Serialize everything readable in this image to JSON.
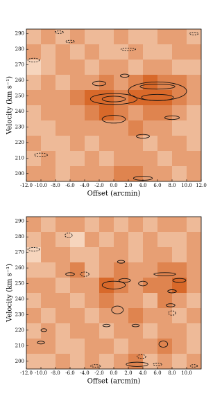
{
  "chart_data": [
    {
      "type": "heatmap",
      "x_label": "Offset (arcmin)",
      "y_label": "Velocity (km s⁻¹)",
      "xlim": [
        -12,
        12
      ],
      "ylim": [
        195,
        293
      ],
      "xticks": [
        {
          "value": -12,
          "label": "-12.0"
        },
        {
          "value": -10,
          "label": "-10.0"
        },
        {
          "value": -8,
          "label": "-8.0"
        },
        {
          "value": -6,
          "label": "-6.0"
        },
        {
          "value": -4,
          "label": "-4.0"
        },
        {
          "value": -2,
          "label": "-2.0"
        },
        {
          "value": 0,
          "label": "0.0"
        },
        {
          "value": 2,
          "label": "2.0"
        },
        {
          "value": 4,
          "label": "4.0"
        },
        {
          "value": 6,
          "label": "6.0"
        },
        {
          "value": 8,
          "label": "8.0"
        },
        {
          "value": 10,
          "label": "10.0"
        },
        {
          "value": 12,
          "label": "12.0"
        }
      ],
      "yticks": [
        200,
        210,
        220,
        230,
        240,
        250,
        260,
        270,
        280,
        290
      ],
      "colors": [
        "#fdf0e2",
        "#d8692a"
      ],
      "zlim": [
        0,
        5
      ],
      "z": [
        [
          2,
          3,
          2,
          3,
          2,
          2,
          3,
          2,
          2,
          3,
          3,
          2
        ],
        [
          3,
          2,
          3,
          2,
          3,
          2,
          2,
          3,
          2,
          2,
          3,
          3
        ],
        [
          1,
          2,
          3,
          3,
          2,
          3,
          3,
          2,
          3,
          3,
          2,
          2
        ],
        [
          2,
          3,
          2,
          3,
          3,
          4,
          3,
          4,
          5,
          4,
          4,
          3
        ],
        [
          3,
          3,
          3,
          4,
          5,
          5,
          4,
          5,
          5,
          5,
          4,
          3
        ],
        [
          2,
          3,
          3,
          3,
          4,
          5,
          4,
          3,
          4,
          4,
          3,
          2
        ],
        [
          2,
          2,
          3,
          3,
          3,
          3,
          3,
          4,
          3,
          3,
          2,
          2
        ],
        [
          3,
          2,
          2,
          3,
          2,
          3,
          3,
          3,
          2,
          3,
          3,
          2
        ],
        [
          2,
          3,
          2,
          2,
          3,
          2,
          3,
          3,
          3,
          2,
          3,
          3
        ],
        [
          3,
          3,
          2,
          3,
          3,
          3,
          4,
          4,
          3,
          3,
          2,
          3
        ]
      ],
      "contours": [
        {
          "x": 0,
          "y": 248,
          "rx": 3.2,
          "ry": 3.5,
          "style": "solid"
        },
        {
          "x": 0,
          "y": 248,
          "rx": 1.6,
          "ry": 1.8,
          "style": "solid"
        },
        {
          "x": 6,
          "y": 253,
          "rx": 4,
          "ry": 6,
          "style": "solid"
        },
        {
          "x": 6,
          "y": 249,
          "rx": 2.2,
          "ry": 2,
          "style": "solid"
        },
        {
          "x": 6,
          "y": 256,
          "rx": 2.4,
          "ry": 1.6,
          "style": "solid"
        },
        {
          "x": 0,
          "y": 235,
          "rx": 1.6,
          "ry": 2.5,
          "style": "solid"
        },
        {
          "x": 8,
          "y": 236,
          "rx": 1,
          "ry": 1.2,
          "style": "solid"
        },
        {
          "x": 4,
          "y": 224,
          "rx": 0.9,
          "ry": 1.2,
          "style": "solid"
        },
        {
          "x": 4,
          "y": 197,
          "rx": 1.3,
          "ry": 1.3,
          "style": "solid"
        },
        {
          "x": -2,
          "y": 258,
          "rx": 0.9,
          "ry": 1.5,
          "style": "solid"
        },
        {
          "x": 1.5,
          "y": 263,
          "rx": 0.6,
          "ry": 1,
          "style": "solid"
        },
        {
          "x": -6,
          "y": 285,
          "rx": 0.6,
          "ry": 0.8,
          "style": "dashed"
        },
        {
          "x": 2,
          "y": 280,
          "rx": 1,
          "ry": 0.8,
          "style": "dashed"
        },
        {
          "x": -11,
          "y": 273,
          "rx": 0.8,
          "ry": 1.2,
          "style": "dashed"
        },
        {
          "x": -10,
          "y": 212,
          "rx": 0.9,
          "ry": 1.2,
          "style": "dashed"
        },
        {
          "x": 11,
          "y": 290,
          "rx": 0.6,
          "ry": 0.8,
          "style": "dashed"
        },
        {
          "x": -7.5,
          "y": 291,
          "rx": 0.6,
          "ry": 0.8,
          "style": "dashed"
        }
      ]
    },
    {
      "type": "heatmap",
      "x_label": "Offset (arcmin)",
      "y_label": "Velocity (km s⁻¹)",
      "xlim": [
        -12,
        12
      ],
      "ylim": [
        195,
        293
      ],
      "xticks": [
        {
          "value": -12,
          "label": "-12.0"
        },
        {
          "value": -10,
          "label": "-10.0"
        },
        {
          "value": -8,
          "label": "-8.0"
        },
        {
          "value": -6,
          "label": "-6.0"
        },
        {
          "value": -4,
          "label": "-4.0"
        },
        {
          "value": -2,
          "label": "-2.0"
        },
        {
          "value": 0,
          "label": "0.0"
        },
        {
          "value": 2,
          "label": "2.0"
        },
        {
          "value": 4,
          "label": "4.0"
        },
        {
          "value": 6,
          "label": "6.0"
        },
        {
          "value": 8,
          "label": "8.0"
        },
        {
          "value": 10,
          "label": "10.0"
        }
      ],
      "yticks": [
        200,
        210,
        220,
        230,
        240,
        250,
        260,
        270,
        280,
        290
      ],
      "colors": [
        "#fdf0e2",
        "#d8692a"
      ],
      "zlim": [
        0,
        5
      ],
      "z": [
        [
          3,
          2,
          3,
          3,
          2,
          3,
          2,
          3,
          2,
          3,
          3,
          2
        ],
        [
          2,
          3,
          2,
          1,
          3,
          2,
          3,
          2,
          3,
          2,
          2,
          3
        ],
        [
          1,
          3,
          3,
          2,
          2,
          3,
          3,
          2,
          3,
          3,
          2,
          3
        ],
        [
          2,
          2,
          3,
          4,
          2,
          3,
          4,
          3,
          3,
          4,
          4,
          3
        ],
        [
          3,
          3,
          2,
          3,
          3,
          5,
          4,
          3,
          4,
          4,
          5,
          3
        ],
        [
          2,
          3,
          3,
          2,
          3,
          4,
          3,
          3,
          2,
          4,
          3,
          2
        ],
        [
          3,
          2,
          3,
          3,
          2,
          3,
          3,
          4,
          3,
          3,
          2,
          3
        ],
        [
          2,
          3,
          2,
          3,
          3,
          2,
          3,
          3,
          2,
          3,
          3,
          2
        ],
        [
          3,
          3,
          2,
          2,
          3,
          3,
          2,
          3,
          3,
          4,
          3,
          2
        ],
        [
          2,
          2,
          3,
          2,
          3,
          2,
          3,
          4,
          2,
          3,
          2,
          3
        ]
      ],
      "contours": [
        {
          "x": 0,
          "y": 249,
          "rx": 1.6,
          "ry": 2.5,
          "style": "solid"
        },
        {
          "x": 1.5,
          "y": 252,
          "rx": 0.8,
          "ry": 1.2,
          "style": "solid"
        },
        {
          "x": -6,
          "y": 256,
          "rx": 0.6,
          "ry": 1,
          "style": "solid"
        },
        {
          "x": 1,
          "y": 264,
          "rx": 0.5,
          "ry": 0.9,
          "style": "solid"
        },
        {
          "x": 7,
          "y": 256,
          "rx": 1.5,
          "ry": 1,
          "style": "solid"
        },
        {
          "x": 9,
          "y": 252,
          "rx": 0.9,
          "ry": 1.3,
          "style": "solid"
        },
        {
          "x": 8,
          "y": 245,
          "rx": 0.6,
          "ry": 1,
          "style": "solid"
        },
        {
          "x": 7.8,
          "y": 236,
          "rx": 0.6,
          "ry": 1,
          "style": "solid"
        },
        {
          "x": 4,
          "y": 250,
          "rx": 0.6,
          "ry": 1.5,
          "style": "solid"
        },
        {
          "x": 0.5,
          "y": 233,
          "rx": 0.8,
          "ry": 2.5,
          "style": "solid"
        },
        {
          "x": -1,
          "y": 223,
          "rx": 0.5,
          "ry": 0.8,
          "style": "solid"
        },
        {
          "x": 3,
          "y": 223,
          "rx": 0.5,
          "ry": 0.8,
          "style": "solid"
        },
        {
          "x": 6.8,
          "y": 211,
          "rx": 0.6,
          "ry": 2,
          "style": "solid"
        },
        {
          "x": 3.2,
          "y": 198,
          "rx": 1.5,
          "ry": 1.4,
          "style": "solid"
        },
        {
          "x": -10,
          "y": 212,
          "rx": 0.5,
          "ry": 0.9,
          "style": "solid"
        },
        {
          "x": -9.6,
          "y": 220,
          "rx": 0.4,
          "ry": 0.9,
          "style": "solid"
        },
        {
          "x": -4,
          "y": 256,
          "rx": 0.6,
          "ry": 1.4,
          "style": "dashed"
        },
        {
          "x": -6.2,
          "y": 281,
          "rx": 0.5,
          "ry": 1.5,
          "style": "dashed"
        },
        {
          "x": -11,
          "y": 272,
          "rx": 0.8,
          "ry": 1.2,
          "style": "dashed"
        },
        {
          "x": 3.8,
          "y": 203,
          "rx": 0.6,
          "ry": 1.2,
          "style": "dashed"
        },
        {
          "x": 8,
          "y": 231,
          "rx": 0.5,
          "ry": 1.4,
          "style": "dashed"
        },
        {
          "x": 6,
          "y": 198,
          "rx": 0.6,
          "ry": 0.8,
          "style": "dashed"
        },
        {
          "x": -2.5,
          "y": 197,
          "rx": 0.7,
          "ry": 0.8,
          "style": "dashed"
        },
        {
          "x": 11,
          "y": 197,
          "rx": 0.5,
          "ry": 0.8,
          "style": "dashed"
        }
      ]
    }
  ]
}
